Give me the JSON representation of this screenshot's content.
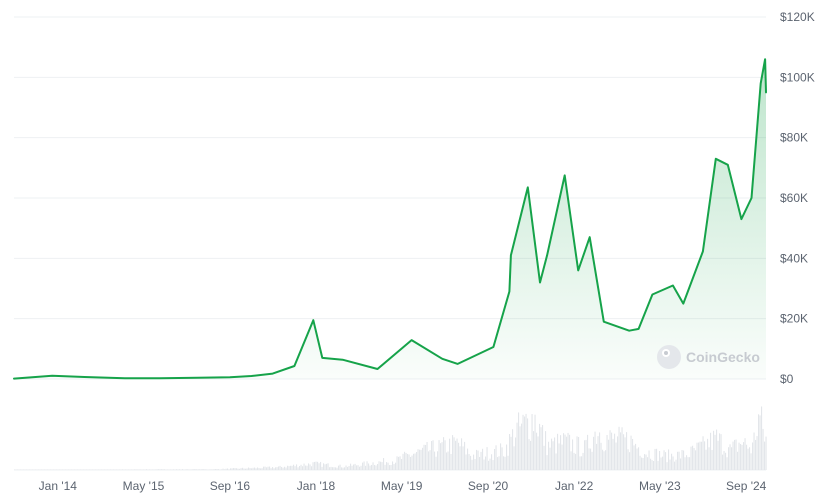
{
  "watermark": {
    "text": "CoinGecko"
  },
  "chart_data": {
    "type": "area",
    "title": "",
    "xlabel": "",
    "ylabel": "",
    "ylim": [
      0,
      120000
    ],
    "xlim": [
      "2013-04-28",
      "2024-12-22"
    ],
    "grid": true,
    "line_color": "#16a34a",
    "fill_color": "#16a34a",
    "volume_color": "#e3e6ea",
    "y_ticks": [
      {
        "value": 120000,
        "label": "$120K"
      },
      {
        "value": 100000,
        "label": "$100K"
      },
      {
        "value": 80000,
        "label": "$80K"
      },
      {
        "value": 60000,
        "label": "$60K"
      },
      {
        "value": 40000,
        "label": "$40K"
      },
      {
        "value": 20000,
        "label": "$20K"
      },
      {
        "value": 0,
        "label": "$0"
      }
    ],
    "x_ticks": [
      {
        "date": "2014-01-01",
        "label": "Jan '14"
      },
      {
        "date": "2015-05-01",
        "label": "May '15"
      },
      {
        "date": "2016-09-01",
        "label": "Sep '16"
      },
      {
        "date": "2018-01-01",
        "label": "Jan '18"
      },
      {
        "date": "2019-05-01",
        "label": "May '19"
      },
      {
        "date": "2020-09-01",
        "label": "Sep '20"
      },
      {
        "date": "2022-01-01",
        "label": "Jan '22"
      },
      {
        "date": "2023-05-01",
        "label": "May '23"
      },
      {
        "date": "2024-09-01",
        "label": "Sep '24"
      }
    ],
    "series": [
      {
        "x": [
          "2013-04-28",
          "2013-11-30",
          "2014-06-01",
          "2015-01-15",
          "2015-08-01",
          "2016-03-01",
          "2016-09-01",
          "2017-01-01",
          "2017-05-01",
          "2017-09-01",
          "2017-12-17",
          "2018-02-06",
          "2018-06-01",
          "2018-12-15",
          "2019-06-26",
          "2019-12-17",
          "2020-03-13",
          "2020-10-01",
          "2020-12-31",
          "2021-01-08",
          "2021-04-14",
          "2021-06-22",
          "2021-08-01",
          "2021-11-09",
          "2022-01-24",
          "2022-03-30",
          "2022-06-18",
          "2022-11-09",
          "2023-01-01",
          "2023-03-20",
          "2023-07-14",
          "2023-09-11",
          "2023-12-31",
          "2024-03-13",
          "2024-05-20",
          "2024-08-05",
          "2024-10-01",
          "2024-11-22",
          "2024-12-17",
          "2024-12-22"
        ],
        "y": [
          130,
          1100,
          650,
          250,
          280,
          420,
          600,
          990,
          1800,
          4300,
          19500,
          7000,
          6400,
          3300,
          12900,
          6700,
          5000,
          10600,
          29000,
          41000,
          63500,
          32000,
          41000,
          67500,
          36000,
          47000,
          19000,
          16000,
          16600,
          28000,
          31000,
          25000,
          42300,
          73000,
          71000,
          53000,
          60000,
          98000,
          106000,
          95000
        ]
      }
    ],
    "volume": {
      "x": [
        "2013-04-28",
        "2016-06-01",
        "2017-06-01",
        "2017-12-17",
        "2018-06-01",
        "2019-04-01",
        "2019-07-01",
        "2020-03-13",
        "2020-06-01",
        "2020-12-01",
        "2021-02-01",
        "2021-05-19",
        "2021-08-01",
        "2021-11-09",
        "2022-03-01",
        "2022-05-12",
        "2022-06-18",
        "2022-11-09",
        "2023-02-01",
        "2023-06-01",
        "2023-10-01",
        "2024-01-15",
        "2024-03-13",
        "2024-06-01",
        "2024-08-05",
        "2024-10-01",
        "2024-11-12",
        "2024-12-05",
        "2024-12-22"
      ],
      "y": [
        0.002,
        0.01,
        0.04,
        0.09,
        0.05,
        0.14,
        0.23,
        0.38,
        0.2,
        0.28,
        0.55,
        0.75,
        0.34,
        0.4,
        0.3,
        0.58,
        0.45,
        0.42,
        0.26,
        0.2,
        0.22,
        0.36,
        0.45,
        0.28,
        0.4,
        0.3,
        0.78,
        0.52,
        0.42
      ]
    }
  }
}
